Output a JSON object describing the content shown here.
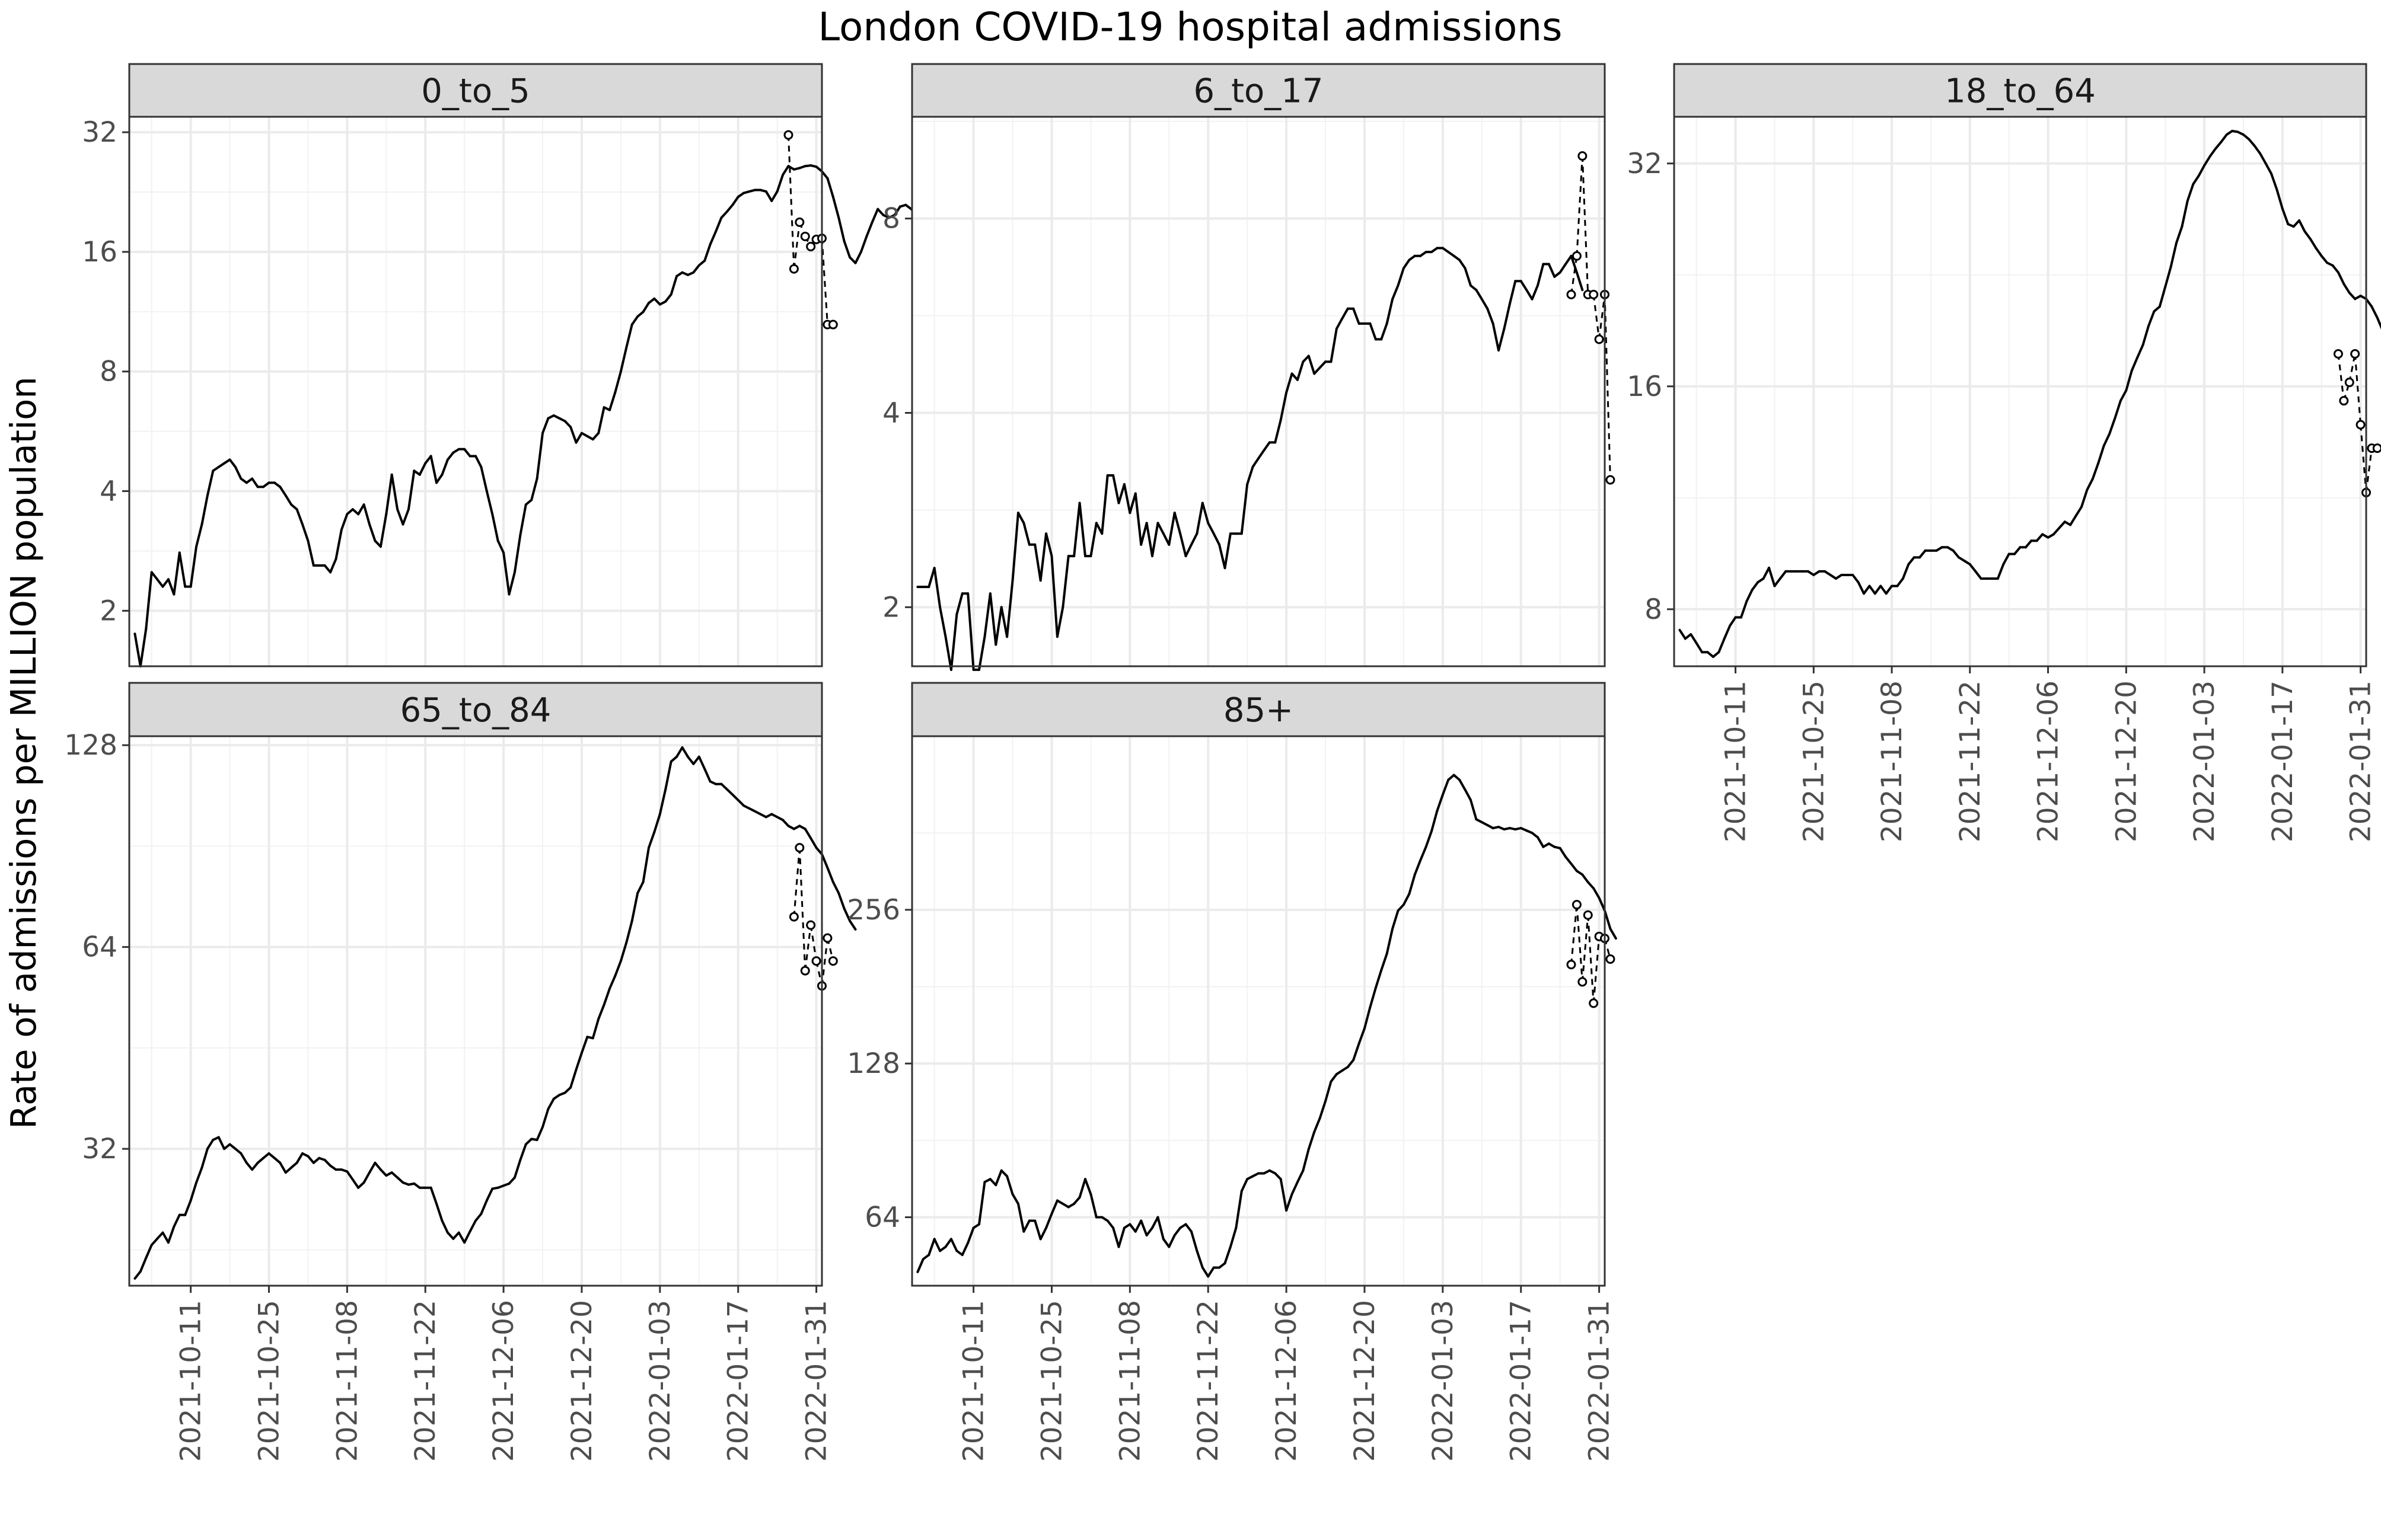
{
  "title": "London COVID-19 hospital admissions",
  "ylabel": "Rate of admissions per MILLION population",
  "x_ticks": [
    "2021-10-11",
    "2021-10-25",
    "2021-11-08",
    "2021-11-22",
    "2021-12-06",
    "2021-12-20",
    "2022-01-03",
    "2022-01-17",
    "2022-01-31"
  ],
  "chart_data": [
    {
      "type": "line",
      "panel": "0_to_5",
      "y_scale": "log2",
      "y_ticks": [
        2,
        4,
        8,
        16,
        32
      ],
      "ylim": [
        1.45,
        35
      ],
      "x_start": "2021-10-01",
      "x_range": [
        "2021-09-30",
        "2022-02-01"
      ],
      "series": [
        {
          "style": "solid",
          "values": [
            1.75,
            1.45,
            1.8,
            2.5,
            2.4,
            2.3,
            2.4,
            2.2,
            2.8,
            2.3,
            2.3,
            2.9,
            3.3,
            3.9,
            4.5,
            4.6,
            4.7,
            4.8,
            4.6,
            4.3,
            4.2,
            4.3,
            4.1,
            4.1,
            4.2,
            4.2,
            4.1,
            3.9,
            3.7,
            3.6,
            3.3,
            3.0,
            2.6,
            2.6,
            2.6,
            2.5,
            2.7,
            3.2,
            3.5,
            3.6,
            3.5,
            3.7,
            3.3,
            3.0,
            2.9,
            3.5,
            4.4,
            3.6,
            3.3,
            3.6,
            4.5,
            4.4,
            4.7,
            4.9,
            4.2,
            4.4,
            4.8,
            5.0,
            5.1,
            5.1,
            4.9,
            4.9,
            4.6,
            4.0,
            3.5,
            3.0,
            2.8,
            2.2,
            2.5,
            3.1,
            3.7,
            3.8,
            4.3,
            5.6,
            6.1,
            6.2,
            6.1,
            6.0,
            5.8,
            5.3,
            5.6,
            5.5,
            5.4,
            5.6,
            6.5,
            6.4,
            7.1,
            8.0,
            9.2,
            10.5,
            11.0,
            11.3,
            11.9,
            12.2,
            11.8,
            12.0,
            12.5,
            13.9,
            14.2,
            14.0,
            14.2,
            14.8,
            15.2,
            16.7,
            18.0,
            19.5,
            20.2,
            21.0,
            22.0,
            22.5,
            22.7,
            22.9,
            22.9,
            22.7,
            21.5,
            22.7,
            25.0,
            26.3,
            25.8,
            26.0,
            26.3,
            26.4,
            26.2,
            25.5,
            24.5,
            22.0,
            19.5,
            17.0,
            15.5,
            15.0,
            16.0,
            17.5,
            19.0,
            20.5,
            19.8,
            19.5,
            19.8,
            20.8,
            21.0,
            20.5,
            19.6,
            19.5,
            19.3,
            19.7,
            19.0,
            19.2,
            18.5,
            17.0,
            16.0
          ]
        },
        {
          "style": "dashed",
          "start_day": 117,
          "values": [
            31.5,
            14.5,
            19.0,
            17.5,
            16.5,
            17.2,
            17.3,
            10.5,
            10.5
          ]
        }
      ]
    },
    {
      "type": "line",
      "panel": "6_to_17",
      "y_scale": "log2",
      "y_ticks": [
        2,
        4,
        8
      ],
      "ylim": [
        1.62,
        11.5
      ],
      "x_start": "2021-10-01",
      "x_range": [
        "2021-09-30",
        "2022-02-01"
      ],
      "series": [
        {
          "style": "solid",
          "values": [
            2.15,
            2.15,
            2.15,
            2.3,
            2.0,
            1.8,
            1.6,
            1.95,
            2.1,
            2.1,
            1.6,
            1.6,
            1.8,
            2.1,
            1.75,
            2.0,
            1.8,
            2.2,
            2.8,
            2.7,
            2.5,
            2.5,
            2.2,
            2.6,
            2.4,
            1.8,
            2.0,
            2.4,
            2.4,
            2.9,
            2.4,
            2.4,
            2.7,
            2.6,
            3.2,
            3.2,
            2.9,
            3.1,
            2.8,
            3.0,
            2.5,
            2.7,
            2.4,
            2.7,
            2.6,
            2.5,
            2.8,
            2.6,
            2.4,
            2.5,
            2.6,
            2.9,
            2.7,
            2.6,
            2.5,
            2.3,
            2.6,
            2.6,
            2.6,
            3.1,
            3.3,
            3.4,
            3.5,
            3.6,
            3.6,
            3.9,
            4.3,
            4.6,
            4.5,
            4.8,
            4.9,
            4.6,
            4.7,
            4.8,
            4.8,
            5.4,
            5.6,
            5.8,
            5.8,
            5.5,
            5.5,
            5.5,
            5.2,
            5.2,
            5.5,
            6.0,
            6.3,
            6.7,
            6.9,
            7.0,
            7.0,
            7.1,
            7.1,
            7.2,
            7.2,
            7.1,
            7.0,
            6.9,
            6.7,
            6.3,
            6.2,
            6.0,
            5.8,
            5.5,
            5.0,
            5.4,
            5.9,
            6.4,
            6.4,
            6.2,
            6.0,
            6.3,
            6.8,
            6.8,
            6.5,
            6.6,
            6.8,
            7.0,
            6.6,
            6.2
          ]
        },
        {
          "style": "dashed",
          "start_day": 117,
          "values": [
            6.1,
            7.0,
            10.0,
            6.1,
            6.1,
            5.2,
            6.1,
            3.15
          ]
        }
      ]
    },
    {
      "type": "line",
      "panel": "18_to_64",
      "y_scale": "log2",
      "y_ticks": [
        8,
        16,
        32
      ],
      "ylim": [
        6.7,
        37
      ],
      "x_start": "2021-10-01",
      "x_range": [
        "2021-09-30",
        "2022-02-01"
      ],
      "series": [
        {
          "style": "solid",
          "values": [
            7.5,
            7.3,
            7.4,
            7.2,
            7.0,
            7.0,
            6.9,
            7.0,
            7.3,
            7.6,
            7.8,
            7.8,
            8.2,
            8.5,
            8.7,
            8.8,
            9.1,
            8.6,
            8.8,
            9.0,
            9.0,
            9.0,
            9.0,
            9.0,
            8.9,
            9.0,
            9.0,
            8.9,
            8.8,
            8.9,
            8.9,
            8.9,
            8.7,
            8.4,
            8.6,
            8.4,
            8.6,
            8.4,
            8.6,
            8.6,
            8.8,
            9.2,
            9.4,
            9.4,
            9.6,
            9.6,
            9.6,
            9.7,
            9.7,
            9.6,
            9.4,
            9.3,
            9.2,
            9.0,
            8.8,
            8.8,
            8.8,
            8.8,
            9.2,
            9.5,
            9.5,
            9.7,
            9.7,
            9.9,
            9.9,
            10.1,
            10.0,
            10.1,
            10.3,
            10.5,
            10.4,
            10.7,
            11.0,
            11.6,
            12.0,
            12.6,
            13.3,
            13.8,
            14.5,
            15.3,
            15.8,
            16.8,
            17.5,
            18.2,
            19.3,
            20.2,
            20.5,
            21.8,
            23.2,
            25.0,
            26.3,
            28.5,
            30.0,
            30.8,
            31.8,
            32.7,
            33.5,
            34.2,
            35.0,
            35.4,
            35.3,
            35.0,
            34.5,
            33.8,
            33.0,
            32.0,
            31.0,
            29.5,
            27.8,
            26.5,
            26.3,
            26.8,
            25.9,
            25.3,
            24.6,
            24.0,
            23.5,
            23.3,
            22.8,
            22.0,
            21.4,
            21.0,
            21.2,
            21.0,
            20.5,
            19.8,
            19.0,
            18.2,
            17.6,
            17.2,
            16.8,
            16.3,
            15.9,
            15.8,
            15.8,
            15.6,
            15.5,
            15.3,
            14.6
          ]
        },
        {
          "style": "dashed",
          "start_day": 118,
          "values": [
            17.7,
            15.3,
            16.2,
            17.7,
            14.2,
            11.5,
            13.2,
            13.2
          ]
        }
      ]
    },
    {
      "type": "line",
      "panel": "65_to_84",
      "y_scale": "log2",
      "y_ticks": [
        32,
        64,
        128
      ],
      "ylim": [
        20,
        132
      ],
      "x_start": "2021-10-01",
      "x_range": [
        "2021-09-30",
        "2022-02-01"
      ],
      "series": [
        {
          "style": "solid",
          "values": [
            20.5,
            21,
            22,
            23,
            23.5,
            24,
            23.2,
            24.5,
            25.5,
            25.5,
            26.8,
            28.5,
            30,
            32,
            33,
            33.3,
            32,
            32.5,
            32,
            31.5,
            30.5,
            29.8,
            30.5,
            31,
            31.5,
            31,
            30.5,
            29.5,
            30,
            30.5,
            31.5,
            31.2,
            30.5,
            31,
            30.8,
            30.2,
            29.8,
            29.8,
            29.6,
            28.8,
            28,
            28.5,
            29.5,
            30.5,
            29.8,
            29.2,
            29.5,
            29,
            28.5,
            28.3,
            28.4,
            28.0,
            28.0,
            28.0,
            26.5,
            25,
            24,
            23.5,
            24,
            23.2,
            24.1,
            25,
            25.6,
            26.8,
            27.9,
            28,
            28.2,
            28.4,
            29,
            30.8,
            32.5,
            33.1,
            33,
            34.5,
            36.7,
            38,
            38.5,
            38.8,
            39.5,
            42,
            44.5,
            47,
            46.8,
            50,
            52.5,
            55.5,
            58,
            61,
            65,
            70,
            77,
            80,
            90,
            95,
            101,
            110,
            121,
            123,
            127,
            123,
            120,
            123,
            118,
            113,
            112,
            112,
            110,
            108,
            106,
            104,
            103,
            102,
            101,
            100,
            101,
            100,
            99,
            97,
            96,
            97,
            96,
            93,
            90,
            88,
            84,
            80,
            77,
            73,
            70,
            68
          ]
        },
        {
          "style": "dashed",
          "start_day": 118,
          "values": [
            71,
            90,
            59,
            69,
            61,
            56,
            66,
            61
          ]
        }
      ]
    },
    {
      "type": "line",
      "panel": "85+",
      "y_scale": "log2",
      "y_ticks": [
        64,
        128,
        256
      ],
      "ylim": [
        47,
        560
      ],
      "x_start": "2021-10-01",
      "x_range": [
        "2021-09-30",
        "2022-02-01"
      ],
      "series": [
        {
          "style": "solid",
          "values": [
            50,
            53,
            54,
            58,
            55,
            56,
            58,
            55,
            54,
            57,
            61,
            62,
            75,
            76,
            74,
            79,
            77,
            71,
            68,
            60,
            63,
            63,
            58,
            61,
            65,
            69,
            68,
            67,
            68,
            70,
            76,
            71,
            64,
            64,
            63,
            61,
            56,
            61,
            62,
            60,
            63,
            59,
            61,
            64,
            58,
            56,
            59,
            61,
            62,
            60,
            55,
            51,
            49,
            51,
            51,
            52,
            56,
            61,
            72,
            76,
            77,
            78,
            78,
            79,
            78,
            76,
            66,
            71,
            75,
            79,
            87,
            94,
            100,
            108,
            118,
            122,
            124,
            126,
            130,
            140,
            150,
            165,
            180,
            195,
            210,
            235,
            255,
            262,
            275,
            300,
            320,
            340,
            365,
            400,
            430,
            460,
            470,
            460,
            440,
            420,
            385,
            380,
            375,
            370,
            372,
            368,
            370,
            368,
            370,
            366,
            362,
            355,
            340,
            345,
            340,
            338,
            325,
            315,
            305,
            300,
            290,
            282,
            270,
            255,
            235,
            225
          ]
        },
        {
          "style": "dashed",
          "start_day": 117,
          "values": [
            200,
            262,
            185,
            250,
            168,
            227,
            225,
            205
          ]
        }
      ]
    }
  ]
}
